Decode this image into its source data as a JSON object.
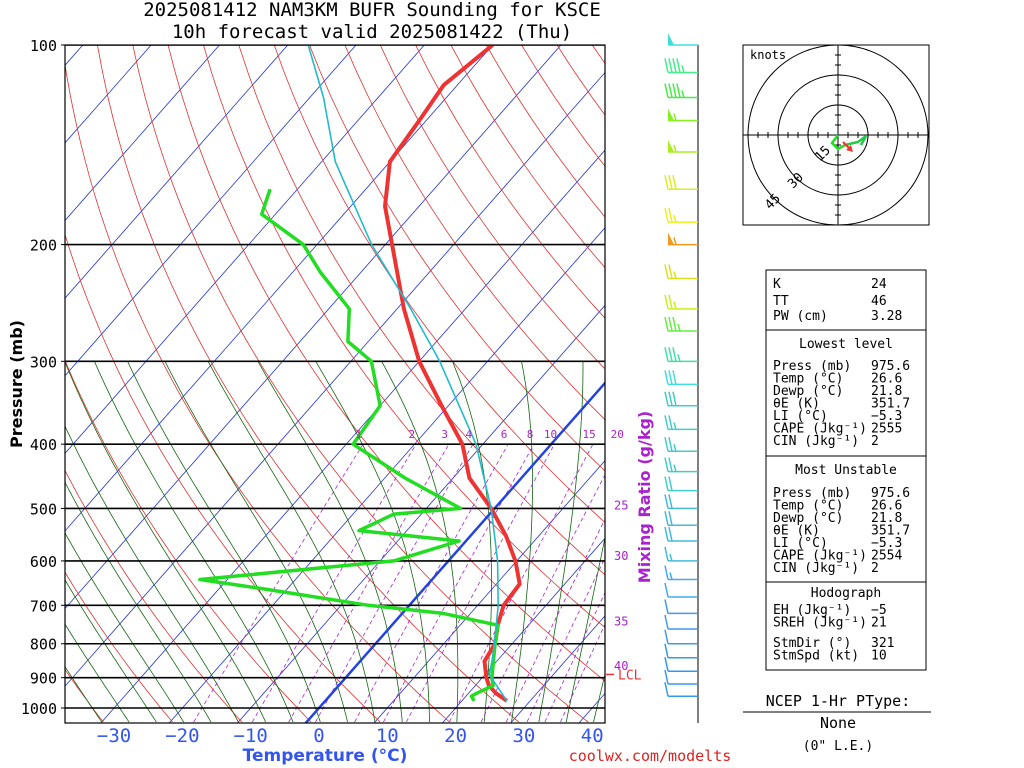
{
  "header": {
    "title_line1": "2025081412 NAM3KM BUFR Sounding for KSCE",
    "title_line2": "10h forecast valid 2025081422 (Thu)"
  },
  "footer": {
    "site": "coolwx.com/modelts"
  },
  "hodograph": {
    "units_label": "knots",
    "ring_labels": [
      "15",
      "30",
      "45"
    ]
  },
  "indices": {
    "k_label": "K",
    "k": "24",
    "tt_label": "TT",
    "tt": "46",
    "pw_label": "PW (cm)",
    "pw": "3.28",
    "lowest_header": "Lowest level",
    "lowest": [
      {
        "label": "Press (mb)",
        "value": "975.6"
      },
      {
        "label": "Temp (°C)",
        "value": "26.6"
      },
      {
        "label": "Dewp (°C)",
        "value": "21.8"
      },
      {
        "label": "θE (K)",
        "value": "351.7"
      },
      {
        "label": "LI (°C)",
        "value": "−5.3"
      },
      {
        "label": "CAPE (Jkg⁻¹)",
        "value": "2555"
      },
      {
        "label": "CIN (Jkg⁻¹)",
        "value": "2"
      }
    ],
    "mu_header": "Most Unstable",
    "mu": [
      {
        "label": "Press (mb)",
        "value": "975.6"
      },
      {
        "label": "Temp (°C)",
        "value": "26.6"
      },
      {
        "label": "Dewp (°C)",
        "value": "21.8"
      },
      {
        "label": "θE (K)",
        "value": "351.7"
      },
      {
        "label": "LI (°C)",
        "value": "−5.3"
      },
      {
        "label": "CAPE (Jkg⁻¹)",
        "value": "2554"
      },
      {
        "label": "CIN (Jkg⁻¹)",
        "value": "2"
      }
    ],
    "hodo_header": "Hodograph",
    "hodo": [
      {
        "label": "EH (Jkg⁻¹)",
        "value": "−5"
      },
      {
        "label": "SREH (Jkg⁻¹)",
        "value": "21"
      },
      {
        "label": "StmDir (°)",
        "value": "321"
      },
      {
        "label": "StmSpd (kt)",
        "value": "10"
      }
    ]
  },
  "ptype": {
    "title": "NCEP 1-Hr PType:",
    "value": "None",
    "note": "(0\" L.E.)"
  },
  "colors": {
    "temperature": "#ee3333",
    "dewpoint": "#22dd22",
    "parcel": "#22bbcc",
    "isotherm": "#2233cc",
    "dry_adiabat": "#dd3333",
    "moist_adiabat": "#116611",
    "mixing_ratio": "#aa22cc",
    "freezing_line": "#2244dd"
  },
  "chart_data": {
    "type": "line",
    "chart_kind": "skew-T log-p",
    "ylabel": "Pressure (mb)",
    "xlabel": "Temperature (°C)",
    "mixing_label": "Mixing Ratio (g/kg)",
    "lcl_label": "LCL",
    "lcl_pressure": 890,
    "pressure_ticks": [
      100,
      200,
      300,
      400,
      500,
      600,
      700,
      800,
      900,
      1000
    ],
    "temp_ticks": [
      "−30",
      "−20",
      "−10",
      "0",
      "10",
      "20",
      "30",
      "40"
    ],
    "temp_tick_values": [
      -30,
      -20,
      -10,
      0,
      10,
      20,
      30,
      40
    ],
    "mixing_ratios_top": [
      "1",
      "2",
      "3",
      "4",
      "6",
      "8",
      "10",
      "15",
      "20"
    ],
    "mixing_ratios_right": [
      {
        "label": "25",
        "p": 495
      },
      {
        "label": "30",
        "p": 590
      },
      {
        "label": "35",
        "p": 740
      },
      {
        "label": "40",
        "p": 865
      }
    ],
    "ylim": [
      1050,
      100
    ],
    "series": [
      {
        "key": "temperature",
        "points": [
          [
            975.6,
            26.6
          ],
          [
            950,
            24
          ],
          [
            925,
            22
          ],
          [
            900,
            20.6
          ],
          [
            850,
            18.2
          ],
          [
            800,
            17.5
          ],
          [
            750,
            15.5
          ],
          [
            700,
            13.8
          ],
          [
            650,
            13.4
          ],
          [
            600,
            9.8
          ],
          [
            550,
            5.2
          ],
          [
            500,
            -0.5
          ],
          [
            450,
            -7.6
          ],
          [
            400,
            -13
          ],
          [
            350,
            -21
          ],
          [
            300,
            -30
          ],
          [
            250,
            -39
          ],
          [
            200,
            -49
          ],
          [
            175,
            -55
          ],
          [
            150,
            -60
          ],
          [
            130,
            -61
          ],
          [
            115,
            -62
          ],
          [
            100,
            -60
          ]
        ]
      },
      {
        "key": "dewpoint",
        "points": [
          [
            975.6,
            21.8
          ],
          [
            960,
            20.8
          ],
          [
            950,
            21.2
          ],
          [
            925,
            22.6
          ],
          [
            900,
            21.4
          ],
          [
            850,
            19.5
          ],
          [
            800,
            17.5
          ],
          [
            750,
            15.5
          ],
          [
            720,
            6
          ],
          [
            700,
            -6
          ],
          [
            660,
            -24
          ],
          [
            640,
            -34
          ],
          [
            600,
            -8
          ],
          [
            560,
            -1
          ],
          [
            540,
            -17
          ],
          [
            510,
            -14
          ],
          [
            500,
            -5
          ],
          [
            450,
            -17
          ],
          [
            400,
            -29
          ],
          [
            350,
            -30
          ],
          [
            300,
            -37
          ],
          [
            280,
            -43
          ],
          [
            250,
            -47
          ],
          [
            220,
            -56
          ],
          [
            200,
            -62
          ],
          [
            180,
            -72
          ],
          [
            165,
            -74
          ]
        ]
      },
      {
        "key": "parcel",
        "points": [
          [
            975.6,
            26.6
          ],
          [
            890,
            20.6
          ],
          [
            850,
            19.3
          ],
          [
            800,
            17.4
          ],
          [
            700,
            13
          ],
          [
            600,
            7.2
          ],
          [
            500,
            -0.5
          ],
          [
            400,
            -11
          ],
          [
            300,
            -27
          ],
          [
            250,
            -38
          ],
          [
            200,
            -52
          ],
          [
            150,
            -68
          ],
          [
            120,
            -78
          ],
          [
            100,
            -87
          ]
        ]
      }
    ],
    "wind_barbs": [
      {
        "p": 100,
        "speed": 50,
        "color": "#44dddd"
      },
      {
        "p": 110,
        "speed": 45,
        "color": "#44ee88"
      },
      {
        "p": 120,
        "speed": 45,
        "color": "#44ee44"
      },
      {
        "p": 130,
        "speed": 55,
        "color": "#88ee22"
      },
      {
        "p": 145,
        "speed": 55,
        "color": "#aaee22"
      },
      {
        "p": 165,
        "speed": 30,
        "color": "#ddee22"
      },
      {
        "p": 185,
        "speed": 25,
        "color": "#eeee22"
      },
      {
        "p": 200,
        "speed": 55,
        "color": "#ee9922"
      },
      {
        "p": 225,
        "speed": 25,
        "color": "#dddd22"
      },
      {
        "p": 250,
        "speed": 25,
        "color": "#ccee22"
      },
      {
        "p": 270,
        "speed": 35,
        "color": "#66ee44"
      },
      {
        "p": 300,
        "speed": 35,
        "color": "#44ddaa"
      },
      {
        "p": 325,
        "speed": 30,
        "color": "#44dddd"
      },
      {
        "p": 350,
        "speed": 30,
        "color": "#44cccc"
      },
      {
        "p": 380,
        "speed": 25,
        "color": "#44cccc"
      },
      {
        "p": 410,
        "speed": 25,
        "color": "#44cccc"
      },
      {
        "p": 440,
        "speed": 25,
        "color": "#44cccc"
      },
      {
        "p": 470,
        "speed": 20,
        "color": "#44cccc"
      },
      {
        "p": 500,
        "speed": 20,
        "color": "#44bbdd"
      },
      {
        "p": 530,
        "speed": 20,
        "color": "#44bbdd"
      },
      {
        "p": 560,
        "speed": 20,
        "color": "#44bbdd"
      },
      {
        "p": 600,
        "speed": 15,
        "color": "#44bbdd"
      },
      {
        "p": 640,
        "speed": 15,
        "color": "#44aaee"
      },
      {
        "p": 680,
        "speed": 10,
        "color": "#44aaee"
      },
      {
        "p": 720,
        "speed": 10,
        "color": "#4499ee"
      },
      {
        "p": 760,
        "speed": 10,
        "color": "#4499ee"
      },
      {
        "p": 800,
        "speed": 10,
        "color": "#4499ee"
      },
      {
        "p": 840,
        "speed": 10,
        "color": "#3399ee"
      },
      {
        "p": 880,
        "speed": 10,
        "color": "#3399ee"
      },
      {
        "p": 920,
        "speed": 10,
        "color": "#3399ee"
      },
      {
        "p": 960,
        "speed": 10,
        "color": "#3399ee"
      }
    ]
  }
}
